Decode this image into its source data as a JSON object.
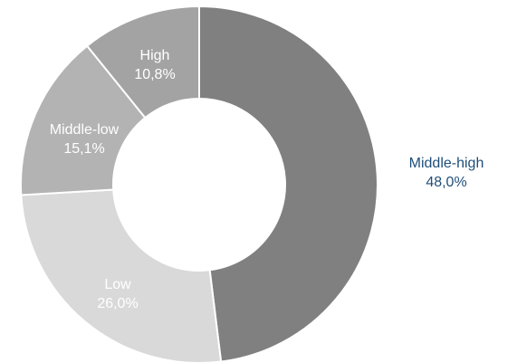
{
  "chart_data": {
    "type": "pie",
    "variant": "donut",
    "title": "",
    "categories": [
      "Middle-high",
      "Low",
      "Middle-low",
      "High"
    ],
    "values": [
      48.0,
      26.0,
      15.1,
      10.8
    ],
    "value_labels": [
      "48,0%",
      "26,0%",
      "15,1%",
      "10,8%"
    ],
    "unit": "%",
    "legend": "none",
    "colors": [
      "#808080",
      "#d9d9d9",
      "#b3b3b3",
      "#a3a3a3"
    ],
    "label_colors": [
      "#1f4e79",
      "#ffffff",
      "#ffffff",
      "#ffffff"
    ],
    "start_angle_deg": 0,
    "direction": "clockwise"
  }
}
